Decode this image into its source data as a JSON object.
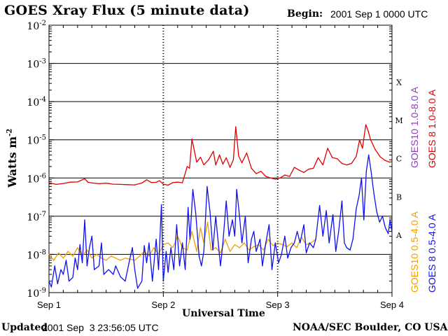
{
  "header": {
    "title": "GOES Xray Flux (5 minute data)",
    "begin_label": "Begin:",
    "begin_value": "2001 Sep 1 0000 UTC"
  },
  "footer": {
    "updated_label": "Updated",
    "updated_value": "2001 Sep  3 23:56:05 UTC",
    "credit": "NOAA/SEC Boulder, CO USA"
  },
  "colors": {
    "goes8_long": "#e00000",
    "goes10_long": "#8e3fb6",
    "goes8_short": "#1010ee",
    "goes10_short": "#f0a000"
  },
  "chart_data": {
    "type": "line",
    "title": "GOES Xray Flux (5 minute data)",
    "xlabel": "Universal Time",
    "ylabel_main": "Watts m",
    "ylabel_exp": "-2",
    "yscale": "log",
    "ylim": [
      1e-09,
      0.01
    ],
    "xlim": [
      0,
      72
    ],
    "x_unit": "hours since 2001 Sep 1 0000 UTC",
    "x_ticks": [
      {
        "value": 0,
        "label": "Sep 1"
      },
      {
        "value": 24,
        "label": "Sep 2"
      },
      {
        "value": 48,
        "label": "Sep 3"
      },
      {
        "value": 72,
        "label": "Sep 4"
      }
    ],
    "y_ticks": [
      {
        "value": 0.01,
        "base": "10",
        "exp": "-2"
      },
      {
        "value": 0.001,
        "base": "10",
        "exp": "-3"
      },
      {
        "value": 0.0001,
        "base": "10",
        "exp": "-4"
      },
      {
        "value": 1e-05,
        "base": "10",
        "exp": "-5"
      },
      {
        "value": 1e-06,
        "base": "10",
        "exp": "-6"
      },
      {
        "value": 1e-07,
        "base": "10",
        "exp": "-7"
      },
      {
        "value": 1e-08,
        "base": "10",
        "exp": "-8"
      },
      {
        "value": 1e-09,
        "base": "10",
        "exp": "-9"
      }
    ],
    "gridlines_y": [
      0.001,
      0.0001,
      1e-05,
      1e-06,
      1e-07,
      1e-08
    ],
    "flare_classes": [
      {
        "label": "X",
        "value": 0.00032
      },
      {
        "label": "M",
        "value": 3.2e-05
      },
      {
        "label": "C",
        "value": 3.2e-06
      },
      {
        "label": "B",
        "value": 3.2e-07
      },
      {
        "label": "A",
        "value": 3.2e-08
      }
    ],
    "legend": [
      {
        "text": "GOES10 1.0-8.0 A",
        "color": "#8e3fb6"
      },
      {
        "text": "GOES 8 1.0-8.0 A",
        "color": "#e00000"
      },
      {
        "text": "GOES10 0.5-4.0 A",
        "color": "#f0a000"
      },
      {
        "text": "GOES 8 0.5-4.0 A",
        "color": "#1010ee"
      }
    ],
    "series": [
      {
        "name": "GOES 8 1.0-8.0 A",
        "color": "#e00000",
        "points": [
          [
            0,
            7.5e-07
          ],
          [
            1.5,
            6.8e-07
          ],
          [
            3,
            7.2e-07
          ],
          [
            4.5,
            7.8e-07
          ],
          [
            6,
            7.9e-07
          ],
          [
            7.5,
            9.6e-07
          ],
          [
            8.2,
            7.7e-07
          ],
          [
            9,
            7.4e-07
          ],
          [
            10.5,
            7.1e-07
          ],
          [
            12,
            7.3e-07
          ],
          [
            13.5,
            6.9e-07
          ],
          [
            15,
            6.8e-07
          ],
          [
            16.5,
            6.7e-07
          ],
          [
            18,
            6.6e-07
          ],
          [
            19.5,
            7.4e-07
          ],
          [
            20.5,
            9e-07
          ],
          [
            21.5,
            7.6e-07
          ],
          [
            22.5,
            7.7e-07
          ],
          [
            23.2,
            8.5e-07
          ],
          [
            24,
            6.9e-07
          ],
          [
            25,
            6.5e-07
          ],
          [
            26,
            7.6e-07
          ],
          [
            27,
            7.8e-07
          ],
          [
            28,
            7.5e-07
          ],
          [
            29,
            2e-06
          ],
          [
            29.5,
            1.8e-06
          ],
          [
            30,
            1.05e-05
          ],
          [
            30.4,
            6e-06
          ],
          [
            31,
            2.6e-06
          ],
          [
            31.8,
            3.5e-06
          ],
          [
            32.5,
            2.2e-06
          ],
          [
            33.5,
            3e-06
          ],
          [
            34.5,
            5e-06
          ],
          [
            35,
            2.2e-06
          ],
          [
            35.8,
            4e-06
          ],
          [
            36.5,
            2.3e-06
          ],
          [
            37.2,
            3.4e-06
          ],
          [
            38,
            1.9e-06
          ],
          [
            38.7,
            3e-06
          ],
          [
            39.2,
            2.2e-05
          ],
          [
            39.8,
            3.8e-06
          ],
          [
            40.5,
            2.5e-06
          ],
          [
            41.5,
            4.5e-06
          ],
          [
            42.5,
            1.8e-06
          ],
          [
            43.5,
            1.3e-06
          ],
          [
            44.5,
            1.5e-06
          ],
          [
            45.5,
            1.1e-06
          ],
          [
            46.5,
            1e-06
          ],
          [
            47.5,
            9.3e-07
          ],
          [
            48.5,
            1e-06
          ],
          [
            49.5,
            1.2e-06
          ],
          [
            50.5,
            1.1e-06
          ],
          [
            51.5,
            1.9e-06
          ],
          [
            52.5,
            1.6e-06
          ],
          [
            53.5,
            1.4e-06
          ],
          [
            54.5,
            1.7e-06
          ],
          [
            55.5,
            1.8e-06
          ],
          [
            56.5,
            3.4e-06
          ],
          [
            57.5,
            2.2e-06
          ],
          [
            58.5,
            6e-06
          ],
          [
            59.5,
            3.4e-06
          ],
          [
            60.5,
            3.2e-06
          ],
          [
            61.5,
            2.4e-06
          ],
          [
            62.5,
            2.2e-06
          ],
          [
            63.5,
            2.4e-06
          ],
          [
            64.5,
            3.7e-06
          ],
          [
            65.2,
            1e-05
          ],
          [
            65.8,
            6e-06
          ],
          [
            66.5,
            2.5e-05
          ],
          [
            67,
            1.7e-05
          ],
          [
            67.5,
            1e-05
          ],
          [
            68.5,
            5.5e-06
          ],
          [
            69.5,
            3.6e-06
          ],
          [
            70.5,
            2.9e-06
          ],
          [
            71.5,
            2.6e-06
          ],
          [
            72,
            2.7e-06
          ]
        ]
      },
      {
        "name": "GOES 8 0.5-4.0 A",
        "color": "#1010ee",
        "points": [
          [
            0,
            2e-09
          ],
          [
            0.5,
            1.4e-09
          ],
          [
            1.2,
            5e-09
          ],
          [
            1.8,
            1.7e-09
          ],
          [
            2.5,
            4e-09
          ],
          [
            3,
            3e-09
          ],
          [
            3.6,
            7e-09
          ],
          [
            4.2,
            2e-09
          ],
          [
            5,
            2.5e-09
          ],
          [
            5.5,
            8e-09
          ],
          [
            6,
            4e-09
          ],
          [
            6.5,
            1.8e-08
          ],
          [
            7,
            6e-09
          ],
          [
            7.5,
            8e-08
          ],
          [
            8,
            5e-09
          ],
          [
            8.5,
            1.5e-08
          ],
          [
            9,
            3e-08
          ],
          [
            9.5,
            4e-09
          ],
          [
            10.5,
            5e-09
          ],
          [
            11,
            2e-08
          ],
          [
            11.5,
            3e-09
          ],
          [
            12.5,
            4e-09
          ],
          [
            13.5,
            3e-09
          ],
          [
            14,
            5e-09
          ],
          [
            15,
            2.6e-09
          ],
          [
            16,
            2e-09
          ],
          [
            16.8,
            6e-09
          ],
          [
            17.5,
            1.5e-08
          ],
          [
            18,
            4e-09
          ],
          [
            18.6,
            1.3e-09
          ],
          [
            19.5,
            2e-09
          ],
          [
            20,
            1.7e-08
          ],
          [
            20.5,
            6e-09
          ],
          [
            21,
            2e-08
          ],
          [
            21.7,
            2e-09
          ],
          [
            22.5,
            2.5e-08
          ],
          [
            23,
            4e-09
          ],
          [
            23.6,
            2e-07
          ],
          [
            24,
            2e-09
          ],
          [
            24.6,
            1.2e-08
          ],
          [
            25,
            3.4e-09
          ],
          [
            25.6,
            1.5e-08
          ],
          [
            26.2,
            4e-09
          ],
          [
            26.8,
            6e-08
          ],
          [
            27.4,
            5e-09
          ],
          [
            28,
            2e-08
          ],
          [
            28.6,
            4e-09
          ],
          [
            29.2,
            1.7e-07
          ],
          [
            29.6,
            2.5e-08
          ],
          [
            30.2,
            5e-07
          ],
          [
            30.8,
            1.2e-07
          ],
          [
            31.5,
            9e-09
          ],
          [
            32,
            5e-09
          ],
          [
            32.5,
            1.2e-08
          ],
          [
            33.2,
            6e-07
          ],
          [
            33.8,
            1.3e-07
          ],
          [
            34.4,
            1.3e-08
          ],
          [
            35,
            1e-07
          ],
          [
            35.6,
            1.6e-08
          ],
          [
            36,
            5e-09
          ],
          [
            36.5,
            2e-08
          ],
          [
            37.2,
            2.5e-07
          ],
          [
            37.8,
            3e-08
          ],
          [
            38.5,
            8e-08
          ],
          [
            39,
            3e-08
          ],
          [
            39.4,
            5e-07
          ],
          [
            40,
            1e-07
          ],
          [
            40.5,
            2e-08
          ],
          [
            41.2,
            1e-07
          ],
          [
            41.8,
            6e-09
          ],
          [
            42.5,
            2.5e-08
          ],
          [
            43,
            4e-08
          ],
          [
            43.5,
            1.2e-08
          ],
          [
            44.3,
            2.5e-08
          ],
          [
            44.8,
            5e-09
          ],
          [
            45.5,
            2e-08
          ],
          [
            46.2,
            6e-08
          ],
          [
            46.8,
            4e-09
          ],
          [
            47.5,
            2e-08
          ],
          [
            48.2,
            6e-09
          ],
          [
            48.8,
            1e-08
          ],
          [
            49.5,
            3e-08
          ],
          [
            50.1,
            8e-09
          ],
          [
            50.8,
            1.5e-08
          ],
          [
            51.5,
            2e-08
          ],
          [
            52.1,
            4e-08
          ],
          [
            52.7,
            2e-08
          ],
          [
            53.5,
            6e-08
          ],
          [
            54,
            1.1e-08
          ],
          [
            54.7,
            2e-08
          ],
          [
            55.5,
            1.5e-08
          ],
          [
            56,
            2.5e-08
          ],
          [
            56.8,
            1.9e-07
          ],
          [
            57.5,
            3e-08
          ],
          [
            58.2,
            1.4e-07
          ],
          [
            58.8,
            2e-08
          ],
          [
            59.6,
            1.1e-07
          ],
          [
            60.2,
            1.2e-08
          ],
          [
            60.8,
            4e-08
          ],
          [
            61.5,
            2.5e-07
          ],
          [
            62,
            2e-08
          ],
          [
            62.5,
            1.5e-08
          ],
          [
            63.2,
            1.3e-08
          ],
          [
            63.8,
            2.5e-08
          ],
          [
            64.5,
            1.6e-07
          ],
          [
            65.1,
            3.5e-07
          ],
          [
            65.6,
            1e-06
          ],
          [
            66.1,
            8e-08
          ],
          [
            66.6,
            1.5e-06
          ],
          [
            67.1,
            4e-06
          ],
          [
            67.6,
            1.5e-06
          ],
          [
            68.2,
            4e-07
          ],
          [
            68.8,
            1.3e-07
          ],
          [
            69.4,
            7e-08
          ],
          [
            70,
            1e-07
          ],
          [
            70.6,
            5e-08
          ],
          [
            71.2,
            3.5e-08
          ],
          [
            71.6,
            8e-08
          ],
          [
            72,
            3.8e-08
          ]
        ]
      },
      {
        "name": "GOES10 0.5-4.0 A",
        "color": "#f0a000",
        "points": [
          [
            0,
            1e-08
          ],
          [
            1,
            7e-09
          ],
          [
            2,
            1.1e-08
          ],
          [
            3,
            8e-09
          ],
          [
            4,
            1.2e-08
          ],
          [
            5,
            9e-09
          ],
          [
            6,
            1.5e-08
          ],
          [
            7,
            9e-09
          ],
          [
            8,
            1.3e-08
          ],
          [
            9,
            8e-09
          ],
          [
            10,
            1e-08
          ],
          [
            11,
            8e-09
          ],
          [
            12,
            7e-09
          ],
          [
            13,
            9e-09
          ],
          [
            14,
            8e-09
          ],
          [
            15,
            7e-09
          ],
          [
            16,
            8e-09
          ],
          [
            17,
            7.5e-09
          ],
          [
            18,
            7e-09
          ],
          [
            19,
            9e-09
          ],
          [
            20,
            1.2e-08
          ],
          [
            21,
            9e-09
          ],
          [
            22,
            1.5e-08
          ],
          [
            23,
            1e-08
          ],
          [
            24,
            1.8e-08
          ],
          [
            25,
            2e-08
          ],
          [
            26,
            1.5e-08
          ],
          [
            27,
            3e-08
          ],
          [
            28,
            1.5e-08
          ],
          [
            29,
            1.3e-08
          ],
          [
            30,
            4e-08
          ],
          [
            31,
            1.2e-08
          ],
          [
            31.8,
            5e-08
          ],
          [
            32.5,
            2e-08
          ],
          [
            33.3,
            7e-08
          ],
          [
            34,
            1.3e-08
          ],
          [
            35,
            1.5e-08
          ],
          [
            36,
            1.1e-08
          ],
          [
            37,
            2.5e-08
          ],
          [
            38,
            1.2e-08
          ],
          [
            39,
            1.8e-08
          ],
          [
            40,
            1.5e-08
          ],
          [
            41,
            2e-08
          ],
          [
            42,
            1.3e-08
          ],
          [
            43,
            1.6e-08
          ],
          [
            44,
            1.8e-08
          ],
          [
            45,
            1.3e-08
          ],
          [
            46,
            2.5e-08
          ],
          [
            47,
            1.7e-08
          ],
          [
            48,
            2e-08
          ],
          [
            49,
            1.8e-08
          ],
          [
            50,
            1.6e-08
          ],
          [
            51,
            2e-08
          ],
          [
            52,
            1.5e-08
          ],
          [
            53,
            2.8e-08
          ],
          [
            54,
            1.8e-08
          ],
          [
            55,
            2e-08
          ],
          [
            56,
            2.5e-08
          ]
        ]
      }
    ]
  }
}
